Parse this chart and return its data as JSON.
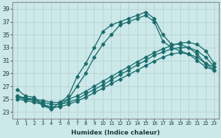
{
  "xlabel": "Humidex (Indice chaleur)",
  "bg_color": "#cce8e8",
  "grid_color": "#b0cccc",
  "line_color": "#1a6e6e",
  "xlim": [
    -0.5,
    23.5
  ],
  "ylim": [
    22,
    40
  ],
  "x_ticks": [
    0,
    1,
    2,
    3,
    4,
    5,
    6,
    7,
    8,
    9,
    10,
    11,
    12,
    13,
    14,
    15,
    16,
    17,
    18,
    19,
    20,
    21,
    22,
    23
  ],
  "y_ticks": [
    23,
    25,
    27,
    29,
    31,
    33,
    35,
    37,
    39
  ],
  "series": [
    {
      "x": [
        0,
        1,
        2,
        3,
        4,
        5,
        6,
        7,
        8,
        9,
        10,
        11,
        12,
        13,
        14,
        15,
        16,
        17,
        18,
        19,
        20,
        21,
        22,
        23
      ],
      "y": [
        26.5,
        25.5,
        25.3,
        24.2,
        23.5,
        24.5,
        25.5,
        28.5,
        30.5,
        33.0,
        35.5,
        36.5,
        37.0,
        37.5,
        38.0,
        38.5,
        37.5,
        35.0,
        33.5,
        33.5,
        33.0,
        32.0,
        30.5,
        30.0
      ],
      "marker": "D",
      "ms": 2.5,
      "lw": 1.0
    },
    {
      "x": [
        0,
        1,
        2,
        3,
        4,
        5,
        6,
        7,
        8,
        9,
        10,
        11,
        12,
        13,
        14,
        15,
        16,
        17,
        18,
        19,
        20,
        21,
        22,
        23
      ],
      "y": [
        25.5,
        25.0,
        25.0,
        24.0,
        23.5,
        24.0,
        25.0,
        27.0,
        29.0,
        31.5,
        33.5,
        35.0,
        36.5,
        37.0,
        37.5,
        38.0,
        37.0,
        34.0,
        33.0,
        32.5,
        32.0,
        31.0,
        30.0,
        29.5
      ],
      "marker": "D",
      "ms": 2.5,
      "lw": 1.0
    },
    {
      "x": [
        0,
        1,
        2,
        3,
        4,
        5,
        6,
        7,
        8,
        9,
        10,
        11,
        12,
        13,
        14,
        15,
        16,
        17,
        18,
        19,
        20,
        21,
        22,
        23
      ],
      "y": [
        25.5,
        25.2,
        25.0,
        24.8,
        24.5,
        24.5,
        25.0,
        25.5,
        26.2,
        27.0,
        27.8,
        28.5,
        29.3,
        30.0,
        30.8,
        31.5,
        32.2,
        32.8,
        33.3,
        33.7,
        33.8,
        33.5,
        32.5,
        30.5
      ],
      "marker": "D",
      "ms": 2.5,
      "lw": 1.0
    },
    {
      "x": [
        0,
        1,
        2,
        3,
        4,
        5,
        6,
        7,
        8,
        9,
        10,
        11,
        12,
        13,
        14,
        15,
        16,
        17,
        18,
        19,
        20,
        21,
        22,
        23
      ],
      "y": [
        25.3,
        25.0,
        24.8,
        24.5,
        24.2,
        24.2,
        24.5,
        25.0,
        25.8,
        26.5,
        27.2,
        28.0,
        28.8,
        29.5,
        30.3,
        31.0,
        31.8,
        32.3,
        32.8,
        33.0,
        33.0,
        32.5,
        31.5,
        30.0
      ],
      "marker": "D",
      "ms": 2.5,
      "lw": 1.0
    },
    {
      "x": [
        0,
        1,
        2,
        3,
        4,
        5,
        6,
        7,
        8,
        9,
        10,
        11,
        12,
        13,
        14,
        15,
        16,
        17,
        18,
        19,
        20,
        21,
        22,
        23
      ],
      "y": [
        25.0,
        24.8,
        24.5,
        24.2,
        23.8,
        23.8,
        24.2,
        24.7,
        25.3,
        26.0,
        26.7,
        27.4,
        28.1,
        28.8,
        29.5,
        30.2,
        30.9,
        31.5,
        32.0,
        32.2,
        32.0,
        31.5,
        30.5,
        29.5
      ],
      "marker": "D",
      "ms": 2.5,
      "lw": 1.0
    }
  ]
}
